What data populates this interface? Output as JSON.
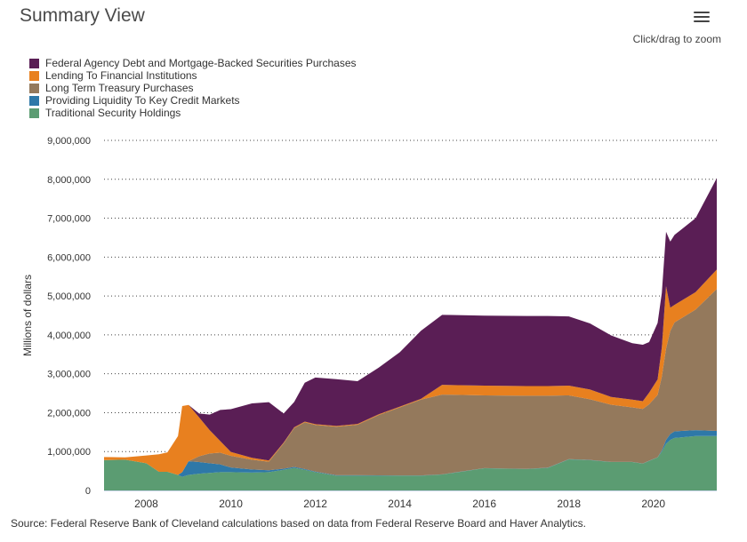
{
  "header": {
    "title": "Summary View",
    "zoom_hint": "Click/drag to zoom"
  },
  "menu": {
    "icon": "hamburger-menu-icon"
  },
  "legend": [
    {
      "label": "Federal Agency Debt and Mortgage-Backed Securities Purchases",
      "color": "#5a1e55"
    },
    {
      "label": "Lending To Financial Institutions",
      "color": "#e8801f"
    },
    {
      "label": "Long Term Treasury Purchases",
      "color": "#94795c"
    },
    {
      "label": "Providing Liquidity To Key Credit Markets",
      "color": "#2e78a8"
    },
    {
      "label": "Traditional Security Holdings",
      "color": "#5b9c72"
    }
  ],
  "footer": {
    "source": "Source: Federal Reserve Bank of Cleveland calculations based on data from Federal Reserve Board and Haver Analytics."
  },
  "chart_data": {
    "type": "area",
    "stacked": true,
    "ylabel": "Millions of dollars",
    "xlim": [
      2007.0,
      2021.5
    ],
    "ylim": [
      0,
      9000000
    ],
    "yticks": [
      0,
      1000000,
      2000000,
      3000000,
      4000000,
      5000000,
      6000000,
      7000000,
      8000000,
      9000000
    ],
    "ytick_labels": [
      "0",
      "1,000,000",
      "2,000,000",
      "3,000,000",
      "4,000,000",
      "5,000,000",
      "6,000,000",
      "7,000,000",
      "8,000,000",
      "9,000,000"
    ],
    "xticks": [
      2008,
      2010,
      2012,
      2014,
      2016,
      2018,
      2020
    ],
    "xtick_labels": [
      "2008",
      "2010",
      "2012",
      "2014",
      "2016",
      "2018",
      "2020"
    ],
    "grid": "horizontal dotted",
    "legend_position": "top-left",
    "x": [
      2007.0,
      2007.5,
      2008.0,
      2008.3,
      2008.5,
      2008.75,
      2008.85,
      2009.0,
      2009.25,
      2009.5,
      2009.75,
      2010.0,
      2010.5,
      2010.9,
      2011.25,
      2011.5,
      2011.75,
      2012.0,
      2012.5,
      2013.0,
      2013.5,
      2014.0,
      2014.5,
      2015.0,
      2016.0,
      2017.0,
      2017.5,
      2018.0,
      2018.5,
      2019.0,
      2019.5,
      2019.75,
      2019.9,
      2020.1,
      2020.2,
      2020.3,
      2020.4,
      2020.5,
      2021.0,
      2021.5
    ],
    "series": [
      {
        "name": "Traditional Security Holdings",
        "values": [
          780000,
          790000,
          700000,
          480000,
          480000,
          400000,
          350000,
          400000,
          430000,
          450000,
          470000,
          470000,
          460000,
          470000,
          530000,
          580000,
          530000,
          470000,
          380000,
          380000,
          380000,
          380000,
          380000,
          410000,
          570000,
          550000,
          580000,
          800000,
          780000,
          730000,
          730000,
          690000,
          760000,
          850000,
          1000000,
          1200000,
          1300000,
          1350000,
          1400000,
          1400000
        ]
      },
      {
        "name": "Providing Liquidity To Key Credit Markets",
        "values": [
          0,
          0,
          0,
          0,
          0,
          0,
          120000,
          350000,
          300000,
          250000,
          200000,
          120000,
          80000,
          50000,
          30000,
          25000,
          20000,
          15000,
          10000,
          10000,
          8000,
          5000,
          5000,
          5000,
          5000,
          5000,
          5000,
          5000,
          5000,
          5000,
          5000,
          5000,
          5000,
          5000,
          30000,
          100000,
          150000,
          170000,
          150000,
          130000
        ]
      },
      {
        "name": "Long Term Treasury Purchases",
        "values": [
          0,
          0,
          0,
          0,
          0,
          0,
          0,
          0,
          150000,
          250000,
          300000,
          300000,
          250000,
          220000,
          650000,
          1000000,
          1200000,
          1200000,
          1250000,
          1300000,
          1550000,
          1750000,
          1950000,
          2050000,
          1870000,
          1880000,
          1850000,
          1640000,
          1560000,
          1470000,
          1400000,
          1400000,
          1450000,
          1600000,
          1900000,
          2350000,
          2650000,
          2800000,
          3100000,
          3650000
        ]
      },
      {
        "name": "Lending To Financial Institutions",
        "values": [
          80000,
          60000,
          200000,
          450000,
          500000,
          1000000,
          1700000,
          1450000,
          1000000,
          600000,
          300000,
          100000,
          50000,
          30000,
          20000,
          20000,
          20000,
          20000,
          20000,
          20000,
          20000,
          20000,
          20000,
          250000,
          250000,
          250000,
          250000,
          250000,
          250000,
          200000,
          200000,
          200000,
          300000,
          400000,
          750000,
          1600000,
          600000,
          450000,
          450000,
          500000
        ]
      },
      {
        "name": "Federal Agency Debt and Mortgage-Backed Securities Purchases",
        "values": [
          0,
          0,
          0,
          0,
          0,
          0,
          0,
          0,
          100000,
          400000,
          800000,
          1100000,
          1400000,
          1500000,
          750000,
          650000,
          1000000,
          1200000,
          1200000,
          1100000,
          1200000,
          1400000,
          1750000,
          1800000,
          1800000,
          1800000,
          1800000,
          1780000,
          1700000,
          1580000,
          1450000,
          1450000,
          1300000,
          1450000,
          1400000,
          1400000,
          1700000,
          1800000,
          1900000,
          2350000
        ]
      }
    ]
  }
}
